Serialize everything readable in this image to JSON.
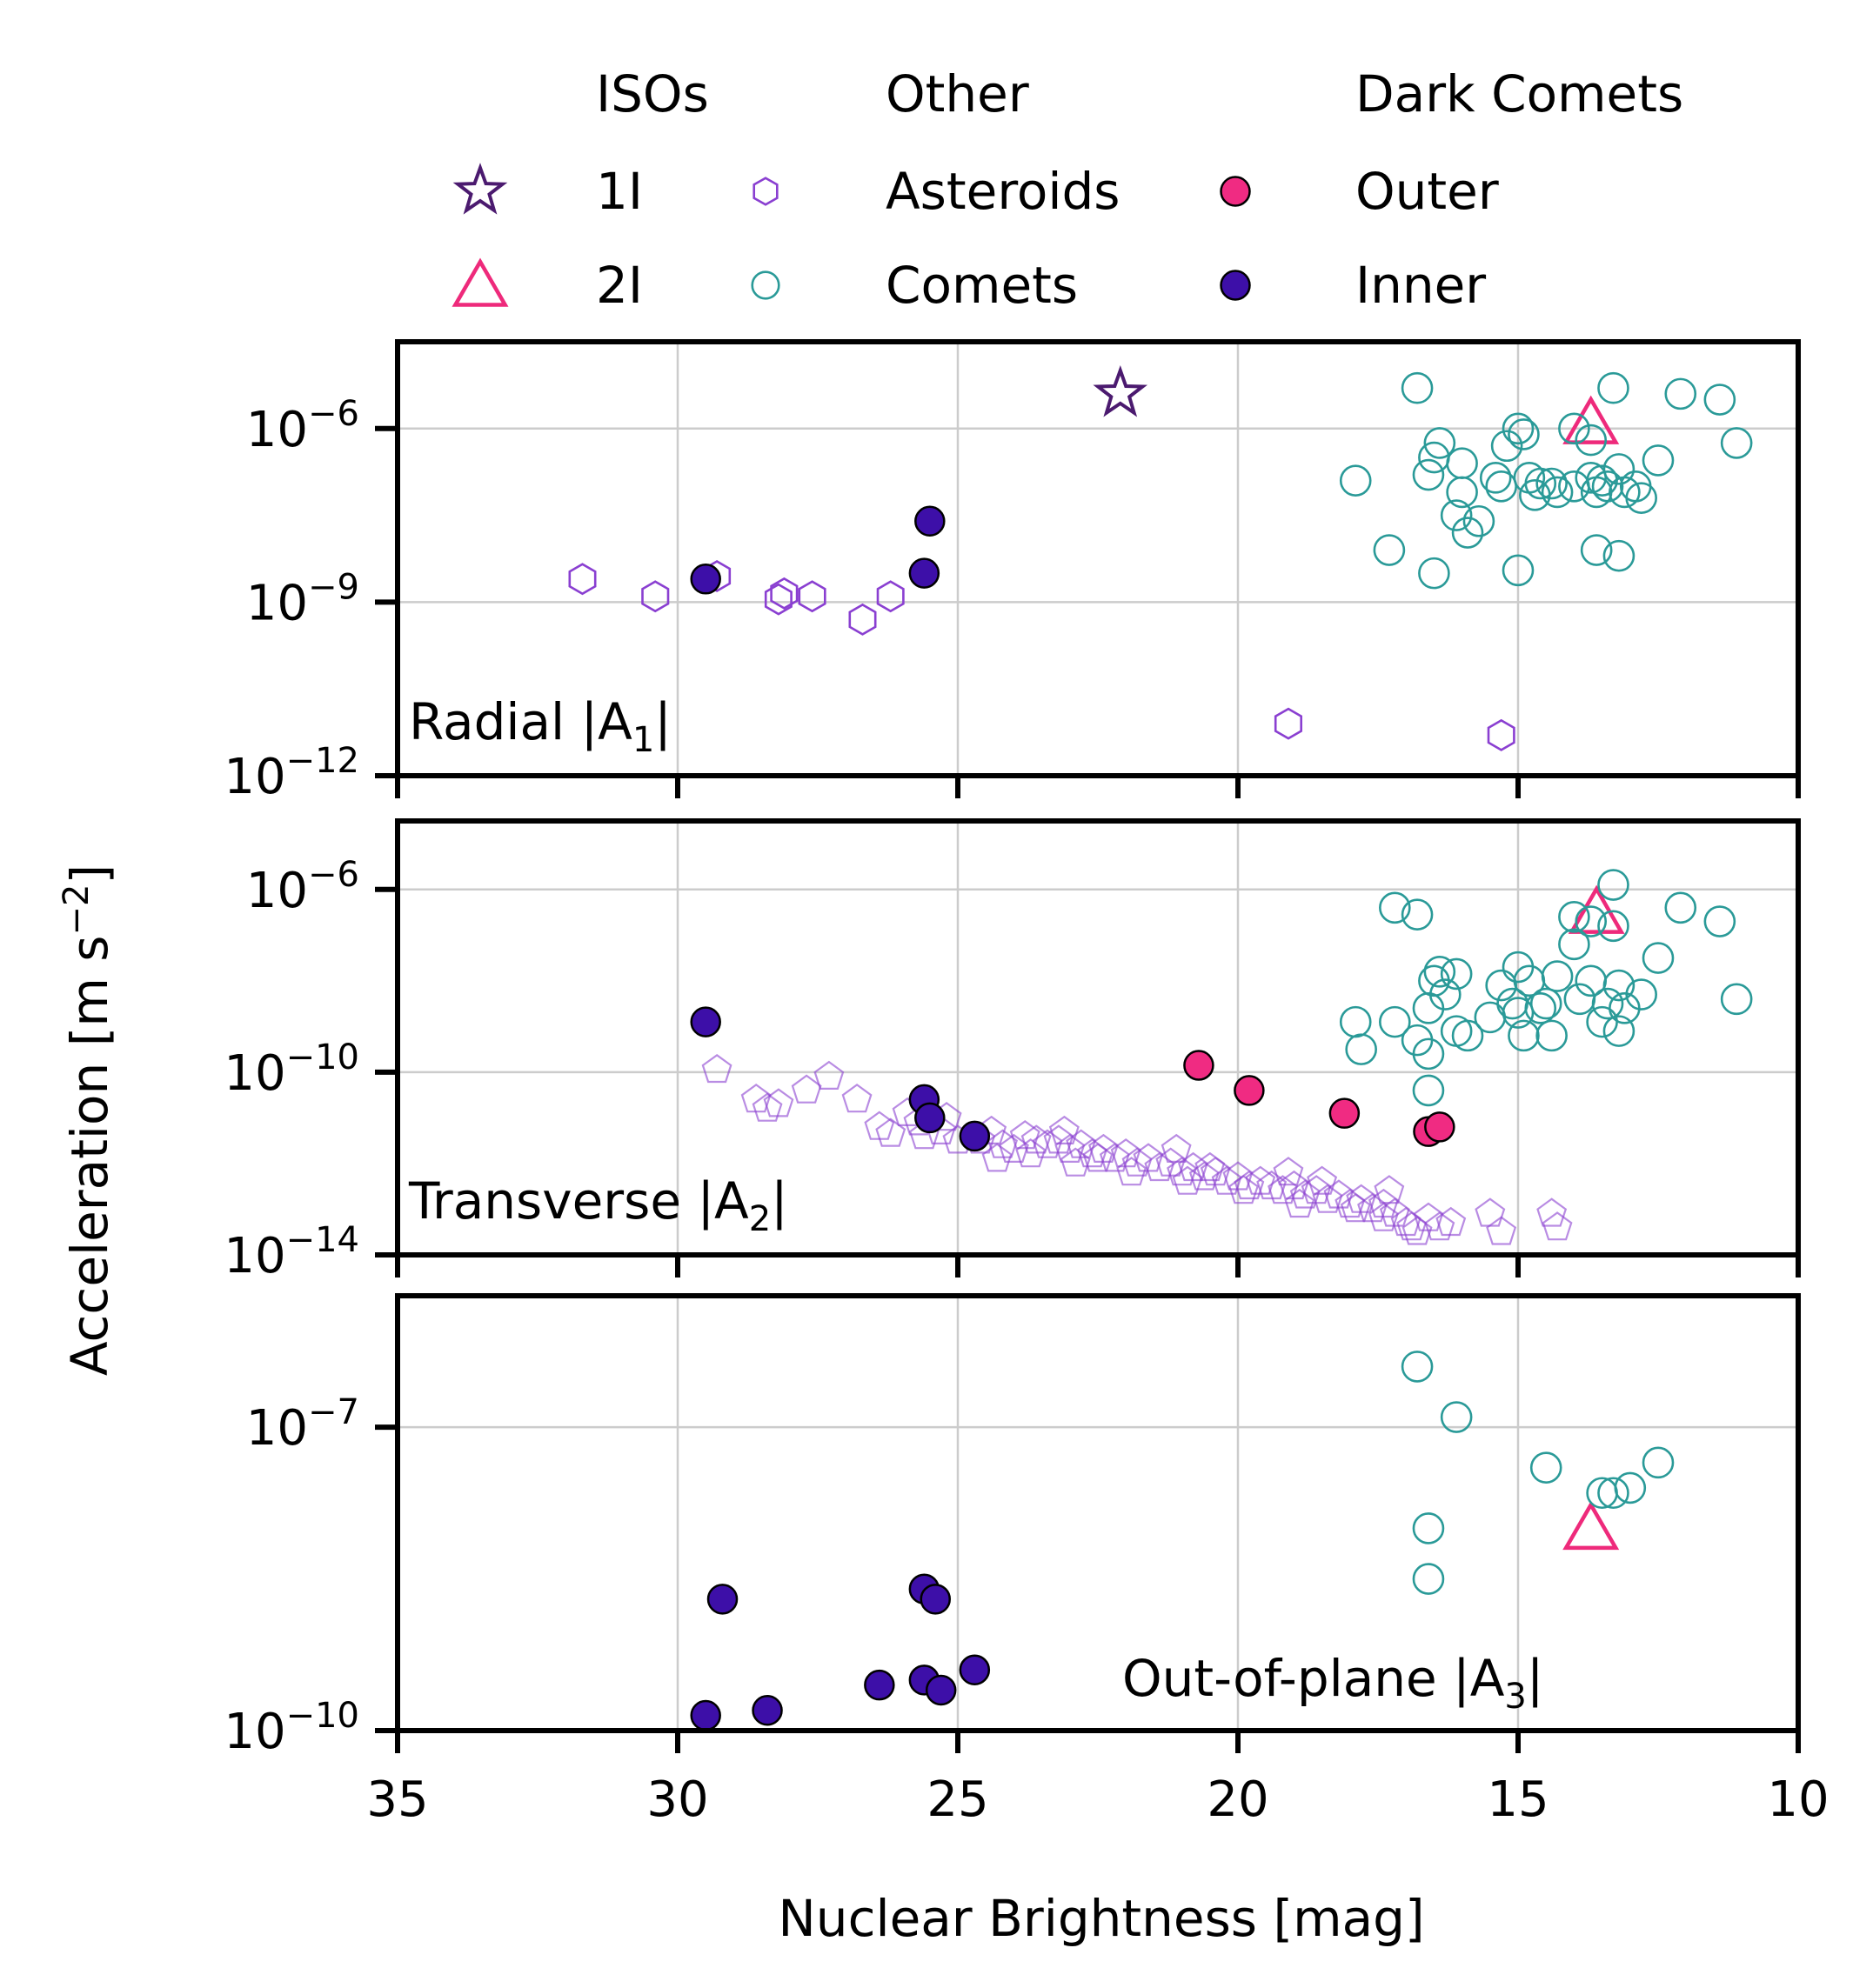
{
  "colors": {
    "iso_1I": "#4b1a6f",
    "iso_2I": "#ee2a7b",
    "asteroids": "#8a3fd1",
    "comets": "#2a9a98",
    "dark_outer": "#f02b82",
    "dark_inner": "#3d0fa8",
    "grid": "#cccccc",
    "axes": "#000000"
  },
  "legend": {
    "groups": [
      {
        "heading": "ISOs",
        "entries": [
          {
            "label": "1I",
            "marker": "star-open",
            "color_key": "iso_1I"
          },
          {
            "label": "2I",
            "marker": "triangle-open",
            "color_key": "iso_2I"
          }
        ]
      },
      {
        "heading": "Other",
        "entries": [
          {
            "label": "Asteroids",
            "marker": "hexagon-open",
            "color_key": "asteroids"
          },
          {
            "label": "Comets",
            "marker": "circle-open",
            "color_key": "comets"
          }
        ]
      },
      {
        "heading": "Dark Comets",
        "entries": [
          {
            "label": "Outer",
            "marker": "circle-filled",
            "color_key": "dark_outer"
          },
          {
            "label": "Inner",
            "marker": "circle-filled",
            "color_key": "dark_inner"
          }
        ]
      }
    ]
  },
  "axes": {
    "xlabel": "Nuclear Brightness [mag]",
    "ylabel_main": "Acceleration [m s",
    "ylabel_sup": "−2",
    "ylabel_close": "]"
  },
  "chart_data": [
    {
      "type": "scatter",
      "panel": "radial",
      "label_main": "Radial |A",
      "label_sub": "1",
      "label_close": "|",
      "label_position": "bottom-left",
      "x_reversed": true,
      "xlim": [
        35,
        10
      ],
      "xticks": [
        35,
        30,
        25,
        20,
        15,
        10
      ],
      "yscale": "log",
      "ylim_exp": [
        -12,
        -4.5
      ],
      "yticks": [
        {
          "exp": -12,
          "label": "−12"
        },
        {
          "exp": -9,
          "label": "−9"
        },
        {
          "exp": -6,
          "label": "−6"
        }
      ],
      "grid": true,
      "series": [
        {
          "name": "1I",
          "marker": "star-open",
          "color_key": "iso_1I",
          "points": [
            [
              22.1,
              -5.4
            ]
          ]
        },
        {
          "name": "2I",
          "marker": "triangle-open",
          "color_key": "iso_2I",
          "points": [
            [
              13.7,
              -5.9
            ]
          ]
        },
        {
          "name": "Asteroids",
          "marker": "hexagon-open",
          "color_key": "asteroids",
          "points": [
            [
              31.7,
              -8.6
            ],
            [
              30.4,
              -8.9
            ],
            [
              29.3,
              -8.55
            ],
            [
              28.2,
              -8.95
            ],
            [
              28.1,
              -8.85
            ],
            [
              27.6,
              -8.9
            ],
            [
              26.7,
              -9.3
            ],
            [
              26.2,
              -8.9
            ],
            [
              19.1,
              -11.1
            ],
            [
              15.3,
              -11.3
            ]
          ]
        },
        {
          "name": "Comets",
          "marker": "circle-open",
          "color_key": "comets",
          "points": [
            [
              16.8,
              -5.3
            ],
            [
              13.3,
              -5.3
            ],
            [
              12.1,
              -5.4
            ],
            [
              11.4,
              -5.5
            ],
            [
              14.0,
              -6.0
            ],
            [
              14.9,
              -6.1
            ],
            [
              15.0,
              -6.0
            ],
            [
              13.7,
              -6.2
            ],
            [
              11.1,
              -6.25
            ],
            [
              16.4,
              -6.25
            ],
            [
              15.2,
              -6.3
            ],
            [
              12.5,
              -6.55
            ],
            [
              16.0,
              -6.6
            ],
            [
              16.5,
              -6.5
            ],
            [
              16.6,
              -6.8
            ],
            [
              13.2,
              -6.7
            ],
            [
              13.7,
              -6.85
            ],
            [
              14.8,
              -6.85
            ],
            [
              13.5,
              -6.9
            ],
            [
              15.4,
              -6.85
            ],
            [
              14.6,
              -6.95
            ],
            [
              12.9,
              -7.0
            ],
            [
              14.4,
              -6.95
            ],
            [
              17.9,
              -6.9
            ],
            [
              15.3,
              -7.0
            ],
            [
              13.4,
              -7.0
            ],
            [
              14.0,
              -7.0
            ],
            [
              13.1,
              -7.1
            ],
            [
              14.3,
              -7.1
            ],
            [
              16.0,
              -7.1
            ],
            [
              14.7,
              -7.15
            ],
            [
              13.6,
              -7.1
            ],
            [
              12.8,
              -7.2
            ],
            [
              16.1,
              -7.5
            ],
            [
              15.7,
              -7.6
            ],
            [
              15.9,
              -7.8
            ],
            [
              17.3,
              -8.1
            ],
            [
              13.6,
              -8.1
            ],
            [
              13.2,
              -8.2
            ],
            [
              16.5,
              -8.5
            ],
            [
              15.0,
              -8.45
            ]
          ]
        },
        {
          "name": "Inner",
          "marker": "circle-filled",
          "color_key": "dark_inner",
          "points": [
            [
              29.5,
              -8.6
            ],
            [
              25.5,
              -7.6
            ],
            [
              25.6,
              -8.5
            ]
          ]
        }
      ]
    },
    {
      "type": "scatter",
      "panel": "transverse",
      "label_main": "Transverse |A",
      "label_sub": "2",
      "label_close": "|",
      "label_position": "bottom-left",
      "x_reversed": true,
      "xlim": [
        35,
        10
      ],
      "xticks": [
        35,
        30,
        25,
        20,
        15,
        10
      ],
      "yscale": "log",
      "ylim_exp": [
        -14,
        -4.5
      ],
      "yticks": [
        {
          "exp": -14,
          "label": "−14"
        },
        {
          "exp": -10,
          "label": "−10"
        },
        {
          "exp": -6,
          "label": "−6"
        }
      ],
      "grid": true,
      "series": [
        {
          "name": "2I",
          "marker": "triangle-open",
          "color_key": "iso_2I",
          "points": [
            [
              13.6,
              -6.5
            ]
          ]
        },
        {
          "name": "Asteroids",
          "marker": "pentagon-open",
          "color_key": "asteroids",
          "points": [
            [
              29.3,
              -9.95
            ],
            [
              28.6,
              -10.6
            ],
            [
              28.4,
              -10.8
            ],
            [
              28.2,
              -10.7
            ],
            [
              27.7,
              -10.4
            ],
            [
              27.3,
              -10.1
            ],
            [
              26.8,
              -10.6
            ],
            [
              26.4,
              -11.2
            ],
            [
              26.2,
              -11.35
            ],
            [
              25.9,
              -10.9
            ],
            [
              25.7,
              -11.1
            ],
            [
              25.6,
              -11.4
            ],
            [
              25.2,
              -11.0
            ],
            [
              25.0,
              -11.5
            ],
            [
              24.6,
              -11.5
            ],
            [
              24.4,
              -11.3
            ],
            [
              24.2,
              -11.6
            ],
            [
              24.0,
              -11.7
            ],
            [
              23.8,
              -11.4
            ],
            [
              23.6,
              -11.5
            ],
            [
              23.4,
              -11.6
            ],
            [
              23.2,
              -11.5
            ],
            [
              23.0,
              -11.7
            ],
            [
              22.8,
              -11.6
            ],
            [
              22.6,
              -11.8
            ],
            [
              22.4,
              -11.7
            ],
            [
              22.2,
              -11.9
            ],
            [
              22.0,
              -11.8
            ],
            [
              21.8,
              -12.0
            ],
            [
              21.6,
              -11.9
            ],
            [
              21.4,
              -12.1
            ],
            [
              21.2,
              -12.0
            ],
            [
              21.0,
              -12.2
            ],
            [
              20.8,
              -12.1
            ],
            [
              20.6,
              -12.3
            ],
            [
              20.4,
              -12.2
            ],
            [
              20.2,
              -12.4
            ],
            [
              20.0,
              -12.3
            ],
            [
              19.8,
              -12.5
            ],
            [
              19.6,
              -12.4
            ],
            [
              19.4,
              -12.5
            ],
            [
              19.2,
              -12.6
            ],
            [
              19.0,
              -12.5
            ],
            [
              18.8,
              -12.7
            ],
            [
              18.6,
              -12.6
            ],
            [
              18.4,
              -12.8
            ],
            [
              18.2,
              -12.7
            ],
            [
              18.0,
              -12.9
            ],
            [
              17.8,
              -12.8
            ],
            [
              17.6,
              -13.0
            ],
            [
              17.4,
              -12.9
            ],
            [
              17.2,
              -13.1
            ],
            [
              17.0,
              -13.3
            ],
            [
              16.8,
              -13.5
            ],
            [
              16.6,
              -13.2
            ],
            [
              16.4,
              -13.4
            ],
            [
              16.2,
              -13.3
            ],
            [
              15.5,
              -13.1
            ],
            [
              15.3,
              -13.5
            ],
            [
              14.4,
              -13.1
            ],
            [
              14.3,
              -13.4
            ],
            [
              24.3,
              -11.9
            ],
            [
              23.7,
              -11.8
            ],
            [
              22.9,
              -12.0
            ],
            [
              21.9,
              -12.2
            ],
            [
              20.9,
              -12.4
            ],
            [
              19.9,
              -12.6
            ],
            [
              18.9,
              -12.9
            ],
            [
              17.9,
              -13.0
            ],
            [
              17.4,
              -13.2
            ],
            [
              16.9,
              -13.4
            ],
            [
              25.3,
              -11.3
            ],
            [
              23.1,
              -11.3
            ],
            [
              21.1,
              -11.7
            ],
            [
              19.1,
              -12.2
            ],
            [
              17.3,
              -12.6
            ],
            [
              22.5,
              -11.9
            ],
            [
              20.5,
              -12.1
            ],
            [
              18.5,
              -12.4
            ]
          ]
        },
        {
          "name": "Comets",
          "marker": "circle-open",
          "color_key": "comets",
          "points": [
            [
              13.3,
              -5.9
            ],
            [
              17.2,
              -6.4
            ],
            [
              16.8,
              -6.55
            ],
            [
              12.1,
              -6.4
            ],
            [
              11.4,
              -6.7
            ],
            [
              14.0,
              -6.6
            ],
            [
              13.7,
              -6.7
            ],
            [
              13.3,
              -6.8
            ],
            [
              14.0,
              -7.2
            ],
            [
              12.5,
              -7.5
            ],
            [
              15.0,
              -7.7
            ],
            [
              16.4,
              -7.8
            ],
            [
              16.1,
              -7.85
            ],
            [
              16.5,
              -8.0
            ],
            [
              15.3,
              -8.1
            ],
            [
              14.8,
              -8.0
            ],
            [
              14.3,
              -7.9
            ],
            [
              13.7,
              -8.0
            ],
            [
              13.2,
              -8.1
            ],
            [
              12.8,
              -8.3
            ],
            [
              11.1,
              -8.4
            ],
            [
              16.3,
              -8.3
            ],
            [
              15.1,
              -8.5
            ],
            [
              14.6,
              -8.6
            ],
            [
              13.9,
              -8.4
            ],
            [
              13.4,
              -8.5
            ],
            [
              13.1,
              -8.6
            ],
            [
              17.9,
              -8.9
            ],
            [
              17.2,
              -8.9
            ],
            [
              16.6,
              -8.6
            ],
            [
              15.5,
              -8.8
            ],
            [
              15.0,
              -8.7
            ],
            [
              14.5,
              -8.5
            ],
            [
              13.5,
              -8.9
            ],
            [
              13.2,
              -9.1
            ],
            [
              15.9,
              -9.2
            ],
            [
              16.1,
              -9.1
            ],
            [
              16.8,
              -9.3
            ],
            [
              14.9,
              -9.2
            ],
            [
              14.4,
              -9.2
            ],
            [
              17.8,
              -9.5
            ],
            [
              16.6,
              -9.6
            ],
            [
              16.6,
              -10.4
            ]
          ]
        },
        {
          "name": "Outer",
          "marker": "circle-filled",
          "color_key": "dark_outer",
          "points": [
            [
              20.7,
              -9.85
            ],
            [
              19.8,
              -10.4
            ],
            [
              18.1,
              -10.9
            ],
            [
              16.6,
              -11.3
            ],
            [
              16.4,
              -11.2
            ]
          ]
        },
        {
          "name": "Inner",
          "marker": "circle-filled",
          "color_key": "dark_inner",
          "points": [
            [
              29.5,
              -8.9
            ],
            [
              25.6,
              -10.6
            ],
            [
              25.5,
              -11.0
            ],
            [
              24.7,
              -11.4
            ]
          ]
        }
      ]
    },
    {
      "type": "scatter",
      "panel": "out-of-plane",
      "label_main": "Out-of-plane |A",
      "label_sub": "3",
      "label_close": "|",
      "label_position": "bottom-right",
      "x_reversed": true,
      "xlim": [
        35,
        10
      ],
      "xticks": [
        35,
        30,
        25,
        20,
        15,
        10
      ],
      "yscale": "log",
      "ylim_exp": [
        -10,
        -5.7
      ],
      "yticks": [
        {
          "exp": -10,
          "label": "−10"
        },
        {
          "exp": -7,
          "label": "−7"
        }
      ],
      "grid": true,
      "series": [
        {
          "name": "2I",
          "marker": "triangle-open",
          "color_key": "iso_2I",
          "points": [
            [
              13.7,
              -8.0
            ]
          ]
        },
        {
          "name": "Comets",
          "marker": "circle-open",
          "color_key": "comets",
          "points": [
            [
              16.8,
              -6.4
            ],
            [
              16.1,
              -6.9
            ],
            [
              14.5,
              -7.4
            ],
            [
              12.5,
              -7.35
            ],
            [
              13.0,
              -7.6
            ],
            [
              13.3,
              -7.65
            ],
            [
              13.5,
              -7.65
            ],
            [
              16.6,
              -8.0
            ],
            [
              16.6,
              -8.5
            ]
          ]
        },
        {
          "name": "Inner",
          "marker": "circle-filled",
          "color_key": "dark_inner",
          "points": [
            [
              29.5,
              -9.85
            ],
            [
              29.2,
              -8.7
            ],
            [
              28.4,
              -9.8
            ],
            [
              26.4,
              -9.55
            ],
            [
              25.6,
              -8.6
            ],
            [
              25.4,
              -8.7
            ],
            [
              25.6,
              -9.5
            ],
            [
              25.3,
              -9.6
            ],
            [
              24.7,
              -9.4
            ]
          ]
        }
      ]
    }
  ],
  "shared_xticklabels": [
    "35",
    "30",
    "25",
    "20",
    "15",
    "10"
  ],
  "ytick_base": "10"
}
